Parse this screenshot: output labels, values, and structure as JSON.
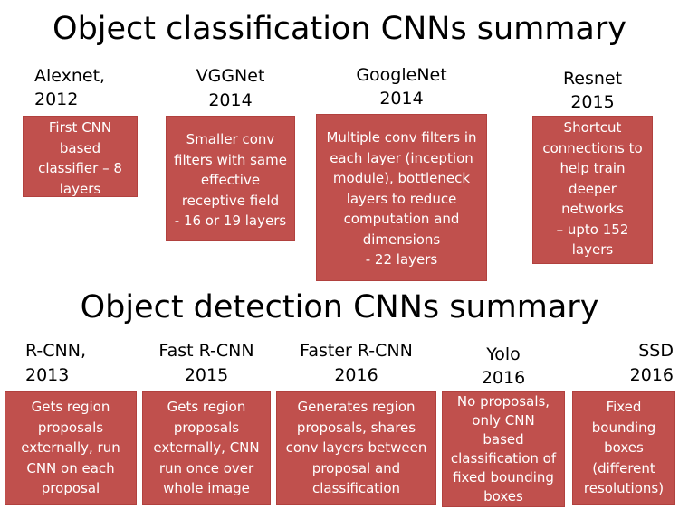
{
  "classification": {
    "title": "Object classification CNNs summary",
    "items": [
      {
        "name": "Alexnet,",
        "year": "2012",
        "lines": [
          "First CNN",
          "based",
          "classifier – 8",
          "layers"
        ]
      },
      {
        "name": "VGGNet",
        "year": "2014",
        "lines": [
          "Smaller conv",
          "filters with same",
          "effective",
          "receptive field",
          "- 16 or 19 layers"
        ]
      },
      {
        "name": "GoogleNet",
        "year": "2014",
        "lines": [
          "Multiple conv filters in",
          "each layer (inception",
          "module), bottleneck",
          "layers to reduce",
          "computation and",
          "dimensions",
          "- 22 layers"
        ]
      },
      {
        "name": "Resnet",
        "year": "2015",
        "lines": [
          "Shortcut",
          "connections to",
          "help train",
          "deeper",
          "networks",
          "– upto 152",
          "layers"
        ]
      }
    ]
  },
  "detection": {
    "title": "Object detection CNNs summary",
    "items": [
      {
        "name": "R-CNN,",
        "year": "2013",
        "lines": [
          "Gets region",
          "proposals",
          "externally, run",
          "CNN on each",
          "proposal"
        ]
      },
      {
        "name": "Fast R-CNN",
        "year": "2015",
        "lines": [
          "Gets region",
          "proposals",
          "externally, CNN",
          "run once over",
          "whole image"
        ]
      },
      {
        "name": "Faster R-CNN",
        "year": "2016",
        "lines": [
          "Generates region",
          "proposals, shares",
          "conv layers between",
          "proposal and",
          "classification"
        ]
      },
      {
        "name": "Yolo",
        "year": "2016",
        "lines": [
          "No proposals,",
          "only CNN",
          "based",
          "classification of",
          "fixed bounding",
          "boxes"
        ]
      },
      {
        "name": "SSD",
        "year": "2016",
        "lines": [
          "Fixed",
          "bounding",
          "boxes",
          "(different",
          "resolutions)"
        ]
      }
    ]
  },
  "colors": {
    "box_fill": "#c0504d",
    "box_text": "#ffffff"
  }
}
